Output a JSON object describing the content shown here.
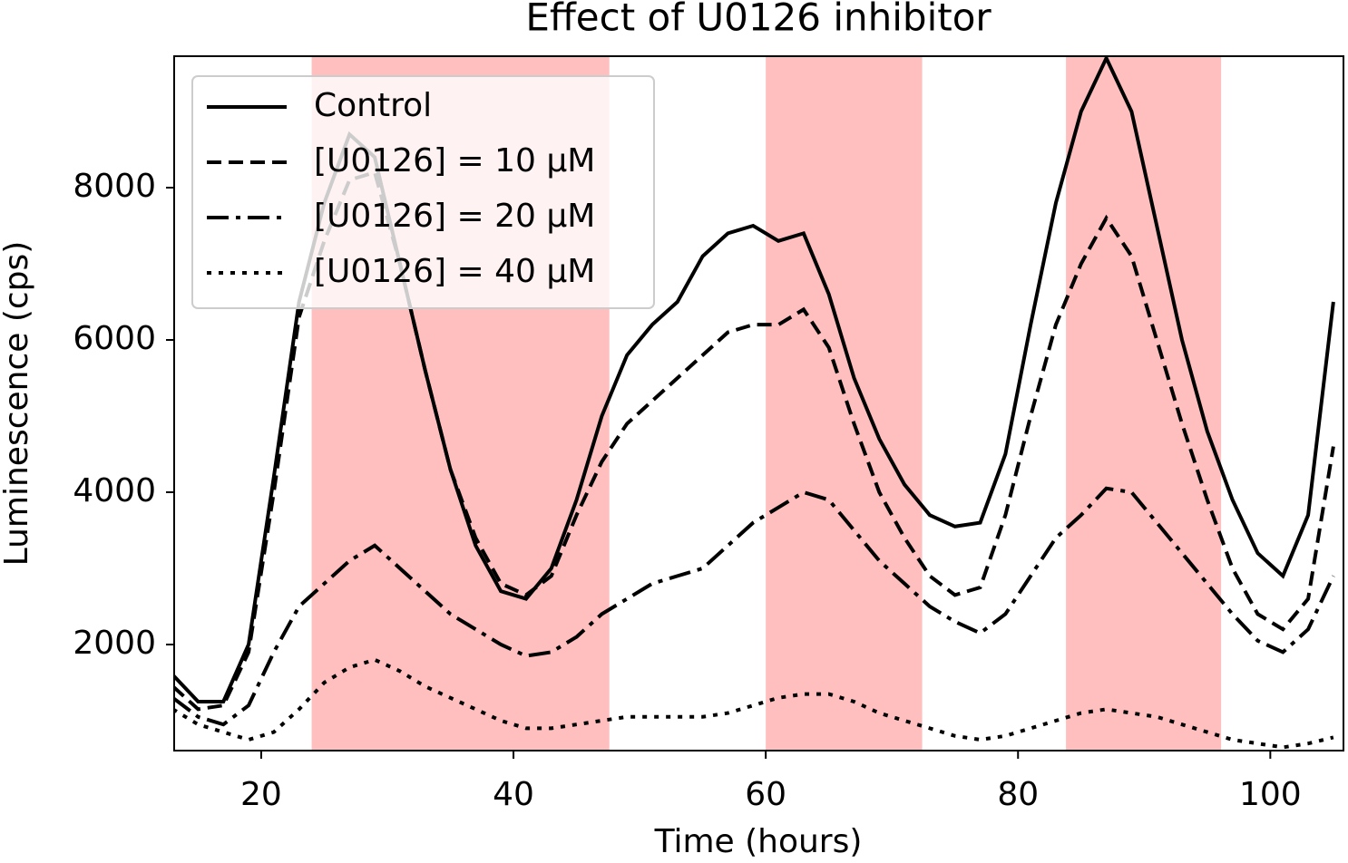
{
  "chart_data": {
    "type": "line",
    "title": "Effect of U0126 inhibitor",
    "xlabel": "Time (hours)",
    "ylabel": "Luminescence (cps)",
    "x": [
      13,
      15,
      17,
      19,
      21,
      23,
      25,
      27,
      29,
      31,
      33,
      35,
      37,
      39,
      41,
      43,
      45,
      47,
      49,
      51,
      53,
      55,
      57,
      59,
      61,
      63,
      65,
      67,
      69,
      71,
      73,
      75,
      77,
      79,
      81,
      83,
      85,
      87,
      89,
      91,
      93,
      95,
      97,
      99,
      101,
      103,
      105
    ],
    "series": [
      {
        "name": "Control",
        "color": "#000000",
        "linestyle": "solid",
        "values": [
          1600,
          1250,
          1250,
          2000,
          4200,
          6500,
          7800,
          8700,
          8400,
          7000,
          5600,
          4300,
          3300,
          2700,
          2600,
          3000,
          3900,
          5000,
          5800,
          6200,
          6500,
          7100,
          7400,
          7500,
          7300,
          7400,
          6600,
          5500,
          4700,
          4100,
          3700,
          3550,
          3600,
          4500,
          6200,
          7800,
          9000,
          9700,
          9000,
          7500,
          6000,
          4800,
          3900,
          3200,
          2900,
          3700,
          6500
        ]
      },
      {
        "name": "[U0126] = 10 μM",
        "color": "#000000",
        "linestyle": "dashed",
        "values": [
          1450,
          1150,
          1200,
          1900,
          4000,
          6300,
          7300,
          8100,
          8200,
          7000,
          5600,
          4300,
          3400,
          2800,
          2650,
          2900,
          3700,
          4400,
          4900,
          5200,
          5500,
          5800,
          6100,
          6200,
          6200,
          6400,
          5900,
          4900,
          4000,
          3400,
          2900,
          2650,
          2750,
          3700,
          5000,
          6200,
          7000,
          7600,
          7100,
          6000,
          4900,
          3900,
          3000,
          2400,
          2200,
          2600,
          4600
        ]
      },
      {
        "name": "[U0126] = 20 μM",
        "color": "#000000",
        "linestyle": "dashdot",
        "values": [
          1300,
          1050,
          950,
          1200,
          1900,
          2500,
          2800,
          3100,
          3300,
          3000,
          2700,
          2400,
          2200,
          2000,
          1850,
          1900,
          2100,
          2400,
          2600,
          2800,
          2900,
          3000,
          3300,
          3600,
          3800,
          4000,
          3900,
          3500,
          3100,
          2800,
          2500,
          2300,
          2150,
          2400,
          2900,
          3400,
          3700,
          4050,
          4000,
          3600,
          3200,
          2800,
          2400,
          2050,
          1900,
          2200,
          2900
        ]
      },
      {
        "name": "[U0126] = 40 μM",
        "color": "#000000",
        "linestyle": "dotted",
        "values": [
          1150,
          950,
          850,
          750,
          850,
          1150,
          1500,
          1700,
          1800,
          1650,
          1450,
          1300,
          1150,
          1000,
          900,
          900,
          950,
          1000,
          1050,
          1050,
          1050,
          1050,
          1100,
          1200,
          1300,
          1350,
          1350,
          1250,
          1100,
          1000,
          900,
          800,
          750,
          800,
          900,
          1000,
          1100,
          1150,
          1100,
          1050,
          950,
          850,
          750,
          700,
          650,
          700,
          780
        ]
      }
    ],
    "shaded_regions": [
      [
        24,
        47.6
      ],
      [
        60,
        72.4
      ],
      [
        83.8,
        96.1
      ]
    ],
    "shade_color": "#ffbfbf",
    "xlim": [
      13.1,
      105.8
    ],
    "ylim": [
      607,
      9726
    ],
    "xticks": [
      20,
      40,
      60,
      80,
      100
    ],
    "yticks": [
      2000,
      4000,
      6000,
      8000
    ],
    "legend": "upper left"
  }
}
